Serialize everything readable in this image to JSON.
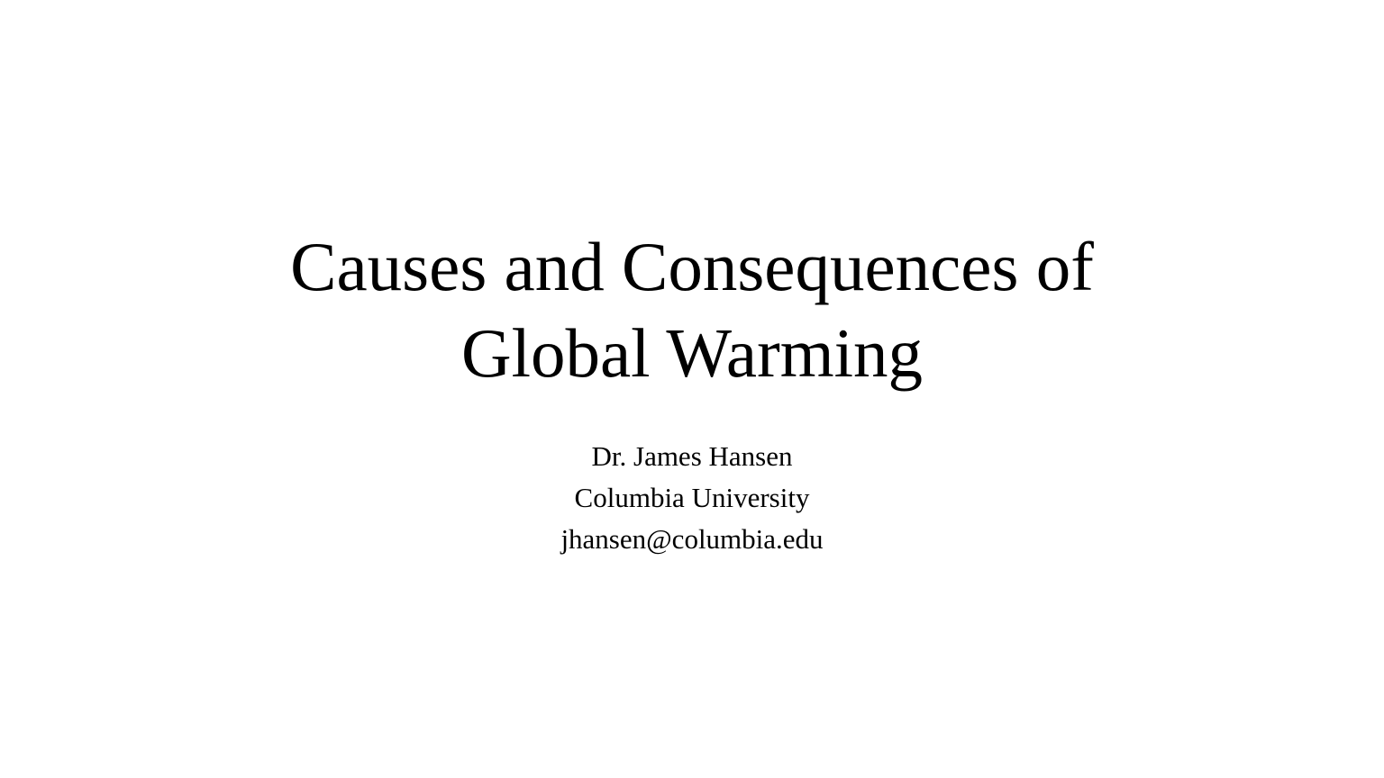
{
  "slide": {
    "title_line1": "Causes and Consequences of",
    "title_line2": "Global Warming",
    "author": "Dr. James Hansen",
    "affiliation": "Columbia University",
    "email": "jhansen@columbia.edu",
    "background_color": "#ffffff",
    "text_color": "#000000"
  }
}
